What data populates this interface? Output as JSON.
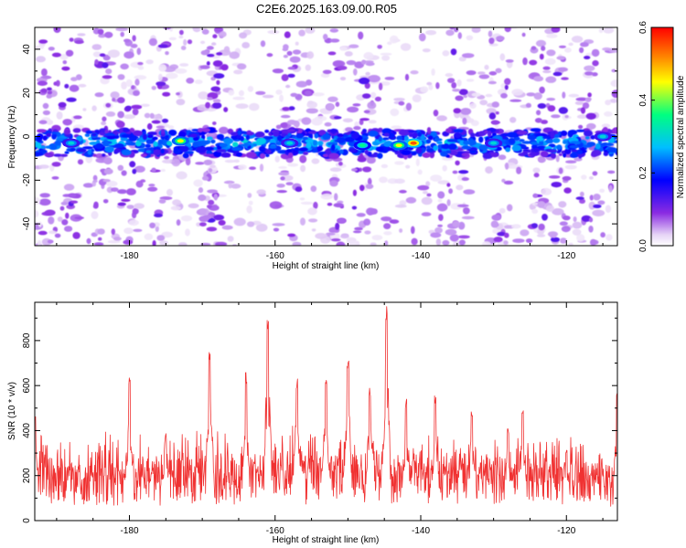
{
  "figure": {
    "title": "C2E6.2025.163.09.00.R05"
  },
  "chart_data": [
    {
      "type": "heatmap",
      "title": "C2E6.2025.163.09.00.R05",
      "xlabel": "Height of straight line (km)",
      "ylabel": "Frequency (Hz)",
      "xlim": [
        -193,
        -113
      ],
      "ylim": [
        -50,
        50
      ],
      "x_ticks": [
        -180,
        -160,
        -140,
        -120
      ],
      "y_ticks": [
        -40,
        -20,
        0,
        20,
        40
      ],
      "colorbar": {
        "label": "Normalized spectral amplitude",
        "range": [
          0,
          0.6
        ],
        "ticks": [
          0.0,
          0.2,
          0.4,
          0.6
        ],
        "colormap": [
          "#ffffff",
          "#e6d4f6",
          "#8a2be2",
          "#0000ff",
          "#00bfff",
          "#00ff80",
          "#ffff00",
          "#ff0000"
        ]
      },
      "features": {
        "band_center_hz": -3,
        "band_halfwidth_hz": 6,
        "strong_spots": [
          {
            "x": -173,
            "y": -2,
            "value": 0.45
          },
          {
            "x": -141,
            "y": -3,
            "value": 0.55
          },
          {
            "x": -143,
            "y": -4,
            "value": 0.45
          },
          {
            "x": -148,
            "y": -4,
            "value": 0.35
          },
          {
            "x": -158,
            "y": -3,
            "value": 0.3
          },
          {
            "x": -130,
            "y": -3,
            "value": 0.3
          },
          {
            "x": -188,
            "y": -3,
            "value": 0.3
          },
          {
            "x": -115,
            "y": 0,
            "value": 0.3
          }
        ]
      }
    },
    {
      "type": "line",
      "xlabel": "Height of straight line (km)",
      "ylabel": "SNR (10 * v/v)",
      "xlim": [
        -193,
        -113
      ],
      "ylim": [
        0,
        970
      ],
      "x_ticks": [
        -180,
        -160,
        -140,
        -120
      ],
      "y_ticks": [
        0,
        200,
        400,
        600,
        800
      ],
      "color": "#f03232",
      "baseline_mean": 150,
      "peaks": [
        {
          "x": -193,
          "y": 480
        },
        {
          "x": -180,
          "y": 640
        },
        {
          "x": -175,
          "y": 390
        },
        {
          "x": -169,
          "y": 750
        },
        {
          "x": -164,
          "y": 660
        },
        {
          "x": -161,
          "y": 890
        },
        {
          "x": -157,
          "y": 630
        },
        {
          "x": -153,
          "y": 660
        },
        {
          "x": -150,
          "y": 710
        },
        {
          "x": -147,
          "y": 590
        },
        {
          "x": -144.7,
          "y": 970
        },
        {
          "x": -142,
          "y": 540
        },
        {
          "x": -138,
          "y": 560
        },
        {
          "x": -133,
          "y": 490
        },
        {
          "x": -128,
          "y": 410
        },
        {
          "x": -126,
          "y": 500
        },
        {
          "x": -120,
          "y": 320
        },
        {
          "x": -113,
          "y": 570
        }
      ]
    }
  ]
}
